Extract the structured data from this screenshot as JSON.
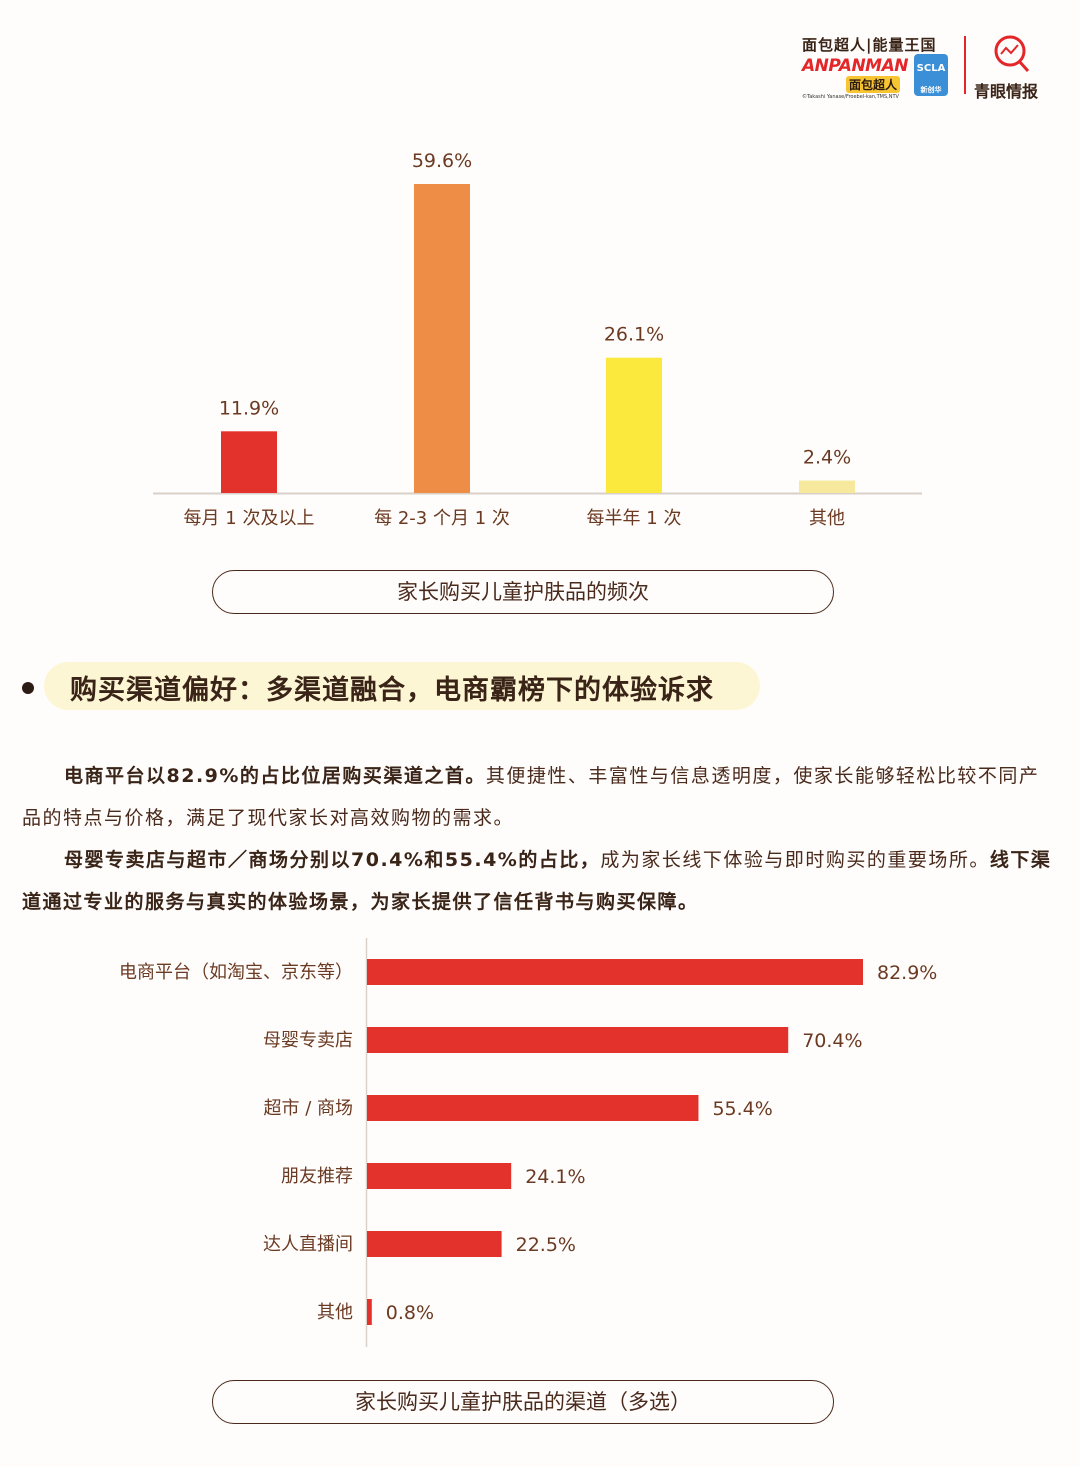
{
  "logos": {
    "line1": "面包超人|能量王国",
    "anpanman": "ANPANMAN",
    "anpanman_cn": "面包超人",
    "copyright": "©Takashi Yanase/Froebel-kan,TMS,NTV",
    "scla": "SCLA",
    "scla_sub": "新创华",
    "qingzhi": "青眼情报"
  },
  "chart1": {
    "caption": "家长购买儿童护肤品的频次",
    "chart_data": {
      "type": "bar",
      "categories": [
        "每月 1 次及以上",
        "每 2-3 个月 1 次",
        "每半年 1 次",
        "其他"
      ],
      "values": [
        11.9,
        59.6,
        26.1,
        2.4
      ],
      "value_labels": [
        "11.9%",
        "59.6%",
        "26.1%",
        "2.4%"
      ],
      "colors": [
        "#e3322b",
        "#ee8d45",
        "#fbea3d",
        "#f6e89c"
      ],
      "ylim": [
        0,
        60
      ],
      "grid": false
    }
  },
  "section": {
    "heading": "购买渠道偏好：多渠道融合，电商霸榜下的体验诉求",
    "p1_bold": "电商平台以82.9%的占比位居购买渠道之首。",
    "p1_rest": "其便捷性、丰富性与信息透明度，使家长能够轻松比较不同产品的特点与价格，满足了现代家长对高效购物的需求。",
    "p2_bold1": "母婴专卖店与超市／商场分别以70.4%和55.4%的占比，",
    "p2_rest": "成为家长线下体验与即时购买的重要场所。",
    "p2_bold2": "线下渠道通过专业的服务与真实的体验场景，为家长提供了信任背书与购买保障。"
  },
  "chart2": {
    "caption": "家长购买儿童护肤品的渠道（多选）",
    "chart_data": {
      "type": "bar",
      "orientation": "horizontal",
      "categories": [
        "电商平台（如淘宝、京东等）",
        "母婴专卖店",
        "超市 / 商场",
        "朋友推荐",
        "达人直播间",
        "其他"
      ],
      "values": [
        82.9,
        70.4,
        55.4,
        24.1,
        22.5,
        0.8
      ],
      "value_labels": [
        "82.9%",
        "70.4%",
        "55.4%",
        "24.1%",
        "22.5%",
        "0.8%"
      ],
      "color": "#e3322b",
      "xlim": [
        0,
        100
      ],
      "grid": false
    }
  }
}
